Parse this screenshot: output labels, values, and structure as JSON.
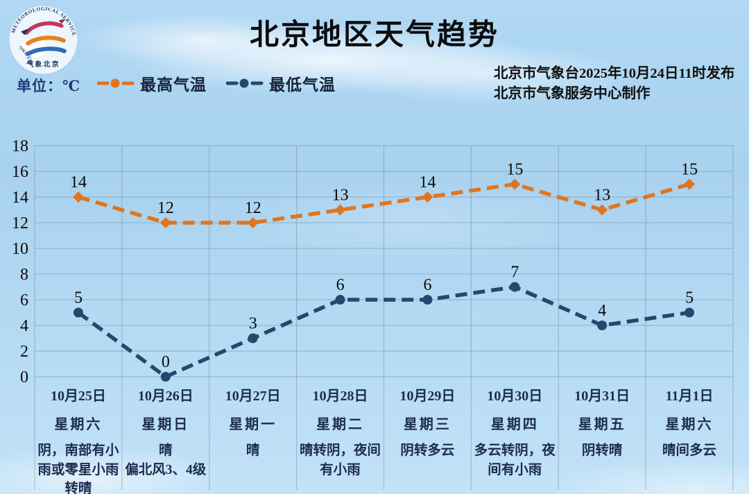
{
  "header": {
    "title": "北京地区天气趋势",
    "unit_label": "单位：℃",
    "publisher_line1": "北京市气象台2025年10月24日11时发布",
    "publisher_line2": "北京市气象服务中心制作",
    "logo": {
      "arc_top": "METEOROLOGICAL SERVICE",
      "arc_left": "BEIJING",
      "bottom_text": "气象北京"
    }
  },
  "legend": [
    {
      "label": "最高气温",
      "color": "#e0751f"
    },
    {
      "label": "最低气温",
      "color": "#21496e"
    }
  ],
  "colors": {
    "high_temp": "#e0751f",
    "low_temp": "#21496e",
    "grid": "rgba(105,130,155,0.5)",
    "tick_text": "#0a0a0a",
    "point_label": "#0a0a0a",
    "day_label": "#1d2c4e"
  },
  "chart_data": {
    "type": "line",
    "title": "北京地区天气趋势",
    "unit": "℃",
    "ylim": [
      0,
      18
    ],
    "ytick_step": 2,
    "grid": true,
    "legend_position": "top-left",
    "series": [
      {
        "name": "最高气温",
        "color": "#e0751f",
        "marker": "diamond",
        "values": [
          14,
          12,
          12,
          13,
          14,
          15,
          13,
          15
        ]
      },
      {
        "name": "最低气温",
        "color": "#21496e",
        "marker": "circle",
        "values": [
          5,
          0,
          3,
          6,
          6,
          7,
          4,
          5
        ]
      }
    ],
    "days": [
      {
        "date": "10月25日",
        "weekday": "星期六",
        "weather": [
          "阴，南部有小雨或零星小雨转晴"
        ]
      },
      {
        "date": "10月26日",
        "weekday": "星期日",
        "weather": [
          "晴",
          "偏北风3、4级"
        ]
      },
      {
        "date": "10月27日",
        "weekday": "星期一",
        "weather": [
          "晴"
        ]
      },
      {
        "date": "10月28日",
        "weekday": "星期二",
        "weather": [
          "晴转阴，夜间有小雨"
        ]
      },
      {
        "date": "10月29日",
        "weekday": "星期三",
        "weather": [
          "阴转多云"
        ]
      },
      {
        "date": "10月30日",
        "weekday": "星期四",
        "weather": [
          "多云转阴，夜间有小雨"
        ]
      },
      {
        "date": "10月31日",
        "weekday": "星期五",
        "weather": [
          "阴转晴"
        ]
      },
      {
        "date": "11月1日",
        "weekday": "星期六",
        "weather": [
          "晴间多云"
        ]
      }
    ]
  }
}
